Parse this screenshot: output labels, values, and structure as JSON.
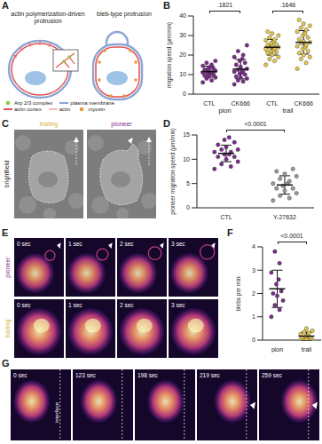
{
  "panel_letters": [
    "A",
    "B",
    "C",
    "D",
    "E",
    "F",
    "G"
  ],
  "diagram": {
    "left_title": "actin polymerization-driven protrusion",
    "right_title": "bleb-type protrusion",
    "legend": [
      {
        "label": "Arp 2/3 complex",
        "color": "#8dc63f"
      },
      {
        "label": "plasma membrane",
        "color": "#8ea6d6"
      },
      {
        "label": "actin cortex",
        "color": "#e0524f"
      },
      {
        "label": "actin",
        "color": "#e0524f"
      },
      {
        "label": "myosin",
        "color": "#e8953a"
      }
    ]
  },
  "brightfield": {
    "row_label": "brightfield",
    "panels": [
      {
        "label": "trailing",
        "color": "#d4b23a"
      },
      {
        "label": "pioneer",
        "color": "#7b2a8c"
      }
    ]
  },
  "timelapse_E": {
    "rows": [
      {
        "label": "pioneer",
        "color": "#7b2a8c"
      },
      {
        "label": "trailing",
        "color": "#d4b23a"
      }
    ],
    "times": [
      "0 sec",
      "1 sec",
      "2 sec",
      "3 sec"
    ]
  },
  "timelapse_G": {
    "times": [
      "0 sec",
      "123 sec",
      "198 sec",
      "219 sec",
      "259 sec"
    ],
    "label": "interface"
  },
  "chart_data": [
    {
      "type": "scatter",
      "y_label": "migration speed (µm/min)",
      "categories": [
        "CTL",
        "CK666",
        "CTL",
        "CK666"
      ],
      "groups": [
        "pion",
        "pion",
        "trail",
        "trail"
      ],
      "colors": [
        "#7b2a8c",
        "#7b2a8c",
        "#e6c84a",
        "#e6c84a"
      ],
      "values": [
        [
          6,
          7,
          8,
          8.5,
          9,
          9.5,
          10,
          10,
          10.5,
          11,
          11,
          11.5,
          12,
          12,
          12.5,
          13,
          13,
          14,
          14.5,
          15,
          16,
          17
        ],
        [
          5,
          6.5,
          7,
          8,
          8.5,
          9,
          10,
          10.5,
          11,
          11.5,
          12,
          12.5,
          13,
          14,
          15,
          16,
          17,
          18,
          19,
          20,
          22,
          25
        ],
        [
          15,
          17,
          18,
          19,
          20,
          21,
          21.5,
          22,
          22.5,
          23,
          23.5,
          24,
          24,
          24.5,
          25,
          25.5,
          26,
          27,
          27.5,
          28,
          29,
          30,
          31,
          32
        ],
        [
          13,
          16,
          18,
          19,
          20,
          21,
          22,
          23,
          24,
          24.5,
          25,
          26,
          26.5,
          27,
          28,
          29,
          30,
          31,
          32,
          33,
          34,
          35,
          36,
          38
        ]
      ],
      "mean": [
        11.5,
        12.8,
        24,
        26.5
      ],
      "sd": [
        2.8,
        5,
        4,
        6
      ],
      "ylim": [
        0,
        40
      ],
      "yticks": [
        0,
        10,
        20,
        30,
        40
      ],
      "annotations": [
        ".1821",
        ".1646"
      ]
    },
    {
      "type": "scatter",
      "y_label": "pioneer migration speed (µm/min)",
      "categories": [
        "CTL",
        "Y-27632"
      ],
      "colors": [
        "#7b2a8c",
        "#9a9a9a"
      ],
      "values": [
        [
          8,
          8.5,
          9,
          9.5,
          10,
          10.5,
          10.5,
          11,
          11,
          11.5,
          11.5,
          12,
          12,
          12.5,
          13,
          13.5,
          14,
          14.5
        ],
        [
          1.5,
          2,
          2.5,
          3,
          3.5,
          4,
          4,
          4.5,
          5,
          5,
          5.5,
          6,
          6.5,
          7,
          7.5,
          8
        ]
      ],
      "mean": [
        11.2,
        4.7
      ],
      "sd": [
        1.7,
        1.9
      ],
      "ylim": [
        0,
        15
      ],
      "yticks": [
        0,
        5,
        10,
        15
      ],
      "annotations": [
        "<0.0001"
      ]
    },
    {
      "type": "scatter",
      "y_label": "blebs per min",
      "categories": [
        "pion",
        "trail"
      ],
      "colors": [
        "#7b2a8c",
        "#e6c84a"
      ],
      "values": [
        [
          1,
          1.3,
          1.5,
          1.7,
          1.9,
          2,
          2.1,
          2.4,
          2.6,
          2.9,
          3.3,
          3.8
        ],
        [
          0,
          0,
          0,
          0,
          0.05,
          0.1,
          0.1,
          0.15,
          0.2,
          0.25,
          0.3,
          0.35,
          0.4,
          0.5
        ]
      ],
      "mean": [
        2.2,
        0.17
      ],
      "sd": [
        0.8,
        0.17
      ],
      "ylim": [
        0,
        4
      ],
      "yticks": [
        0,
        1,
        2,
        3,
        4
      ],
      "annotations": [
        "<0.0001"
      ]
    }
  ]
}
